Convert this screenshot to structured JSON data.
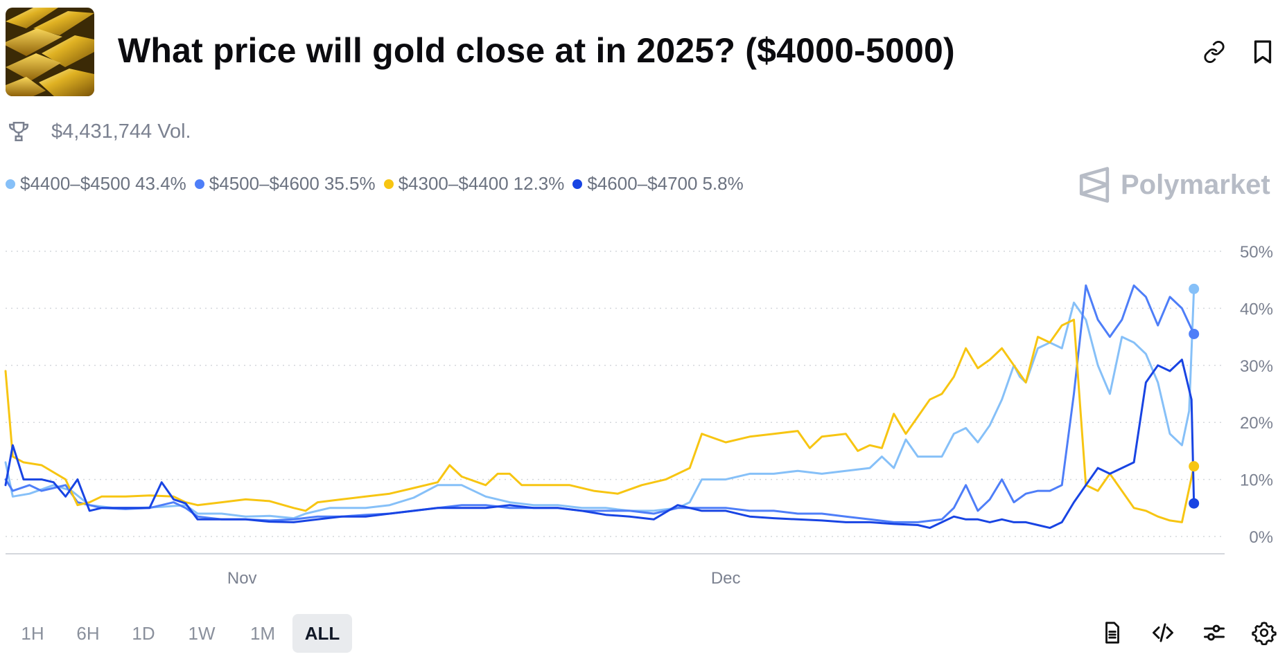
{
  "header": {
    "title": "What price will gold close at in 2025? ($4000-5000)",
    "image_alt": "gold bars"
  },
  "volume": {
    "label": "$4,431,744 Vol."
  },
  "brand": {
    "name": "Polymarket"
  },
  "timeframes": [
    "1H",
    "6H",
    "1D",
    "1W",
    "1M",
    "ALL"
  ],
  "active_timeframe": "ALL",
  "toolbar_icons": [
    "link-icon",
    "bookmark-icon",
    "document-icon",
    "code-icon",
    "sliders-icon",
    "settings-icon"
  ],
  "chart_data": {
    "type": "line",
    "x_ticks": [
      "Nov",
      "Dec"
    ],
    "y_ticks": [
      "0%",
      "10%",
      "20%",
      "30%",
      "40%",
      "50%"
    ],
    "ylim": [
      0,
      50
    ],
    "x_range": [
      0,
      100
    ],
    "x_tick_positions": [
      19.7,
      60.0
    ],
    "grid": "horizontal dotted",
    "legend_position": "top-left",
    "series": [
      {
        "name": "$4400–$4500",
        "label": "43.4%",
        "final": 43.4,
        "color": "#86c0f8",
        "points": [
          [
            0,
            13
          ],
          [
            0.6,
            7
          ],
          [
            2,
            7.5
          ],
          [
            4,
            9
          ],
          [
            5.5,
            8
          ],
          [
            7,
            5.5
          ],
          [
            9,
            5
          ],
          [
            11,
            5
          ],
          [
            13,
            5.2
          ],
          [
            15,
            5.5
          ],
          [
            16,
            4
          ],
          [
            18,
            4
          ],
          [
            20,
            3.5
          ],
          [
            22,
            3.6
          ],
          [
            24,
            3.2
          ],
          [
            25,
            4
          ],
          [
            27,
            5
          ],
          [
            30,
            5
          ],
          [
            32,
            5.5
          ],
          [
            34,
            6.8
          ],
          [
            36,
            9
          ],
          [
            38,
            9
          ],
          [
            40,
            7
          ],
          [
            42,
            6
          ],
          [
            44,
            5.5
          ],
          [
            46,
            5.5
          ],
          [
            48,
            5
          ],
          [
            50,
            5
          ],
          [
            52,
            4.5
          ],
          [
            54,
            4.5
          ],
          [
            56,
            5
          ],
          [
            57,
            6
          ],
          [
            58,
            10
          ],
          [
            60,
            10
          ],
          [
            62,
            11
          ],
          [
            64,
            11
          ],
          [
            66,
            11.5
          ],
          [
            68,
            11
          ],
          [
            70,
            11.5
          ],
          [
            72,
            12
          ],
          [
            73,
            14
          ],
          [
            74,
            12
          ],
          [
            75,
            17
          ],
          [
            76,
            14
          ],
          [
            78,
            14
          ],
          [
            79,
            18
          ],
          [
            80,
            19
          ],
          [
            81,
            16.5
          ],
          [
            82,
            19.5
          ],
          [
            83,
            24
          ],
          [
            84,
            30
          ],
          [
            84.5,
            28
          ],
          [
            85,
            27
          ],
          [
            86,
            33
          ],
          [
            87,
            34
          ],
          [
            88,
            33
          ],
          [
            89,
            41
          ],
          [
            90,
            38
          ],
          [
            91,
            30
          ],
          [
            92,
            25
          ],
          [
            93,
            35
          ],
          [
            94,
            34
          ],
          [
            95,
            32
          ],
          [
            96,
            27
          ],
          [
            97,
            18
          ],
          [
            98,
            16
          ],
          [
            98.6,
            22
          ],
          [
            99,
            43.4
          ]
        ]
      },
      {
        "name": "$4500–$4600",
        "label": "35.5%",
        "final": 35.5,
        "color": "#4e7ef8",
        "points": [
          [
            0,
            10
          ],
          [
            0.6,
            8
          ],
          [
            2,
            9
          ],
          [
            3,
            8
          ],
          [
            4,
            8.5
          ],
          [
            5,
            9
          ],
          [
            6,
            6
          ],
          [
            7,
            5.5
          ],
          [
            8,
            5
          ],
          [
            10,
            4.8
          ],
          [
            12,
            5
          ],
          [
            14,
            6
          ],
          [
            15,
            5
          ],
          [
            16,
            3.5
          ],
          [
            18,
            3
          ],
          [
            20,
            3
          ],
          [
            22,
            2.8
          ],
          [
            24,
            3
          ],
          [
            26,
            3.5
          ],
          [
            28,
            3.5
          ],
          [
            30,
            3.8
          ],
          [
            32,
            4
          ],
          [
            34,
            4.5
          ],
          [
            36,
            5
          ],
          [
            38,
            5.5
          ],
          [
            40,
            5.5
          ],
          [
            42,
            5
          ],
          [
            44,
            5
          ],
          [
            46,
            5
          ],
          [
            48,
            4.5
          ],
          [
            50,
            4.5
          ],
          [
            52,
            4.5
          ],
          [
            54,
            4
          ],
          [
            55,
            4.5
          ],
          [
            56,
            5
          ],
          [
            58,
            5
          ],
          [
            60,
            5
          ],
          [
            62,
            4.5
          ],
          [
            64,
            4.5
          ],
          [
            66,
            4
          ],
          [
            68,
            4
          ],
          [
            70,
            3.5
          ],
          [
            72,
            3
          ],
          [
            74,
            2.5
          ],
          [
            76,
            2.5
          ],
          [
            78,
            3
          ],
          [
            79,
            5
          ],
          [
            80,
            9
          ],
          [
            81,
            4.5
          ],
          [
            82,
            6.5
          ],
          [
            83,
            10
          ],
          [
            84,
            6
          ],
          [
            85,
            7.5
          ],
          [
            86,
            8
          ],
          [
            87,
            8
          ],
          [
            88,
            9
          ],
          [
            89,
            25
          ],
          [
            90,
            44
          ],
          [
            91,
            38
          ],
          [
            92,
            35
          ],
          [
            93,
            38
          ],
          [
            94,
            44
          ],
          [
            95,
            42
          ],
          [
            96,
            37
          ],
          [
            97,
            42
          ],
          [
            98,
            40
          ],
          [
            99,
            35.5
          ]
        ]
      },
      {
        "name": "$4300–$4400",
        "label": "12.3%",
        "final": 12.3,
        "color": "#f7c512",
        "points": [
          [
            0,
            29
          ],
          [
            0.6,
            14
          ],
          [
            1.5,
            13
          ],
          [
            3,
            12.5
          ],
          [
            5,
            10
          ],
          [
            6,
            5.5
          ],
          [
            7,
            6
          ],
          [
            8,
            7
          ],
          [
            10,
            7
          ],
          [
            12,
            7.2
          ],
          [
            14,
            7
          ],
          [
            15,
            6
          ],
          [
            16,
            5.5
          ],
          [
            18,
            6
          ],
          [
            20,
            6.5
          ],
          [
            22,
            6.2
          ],
          [
            24,
            5
          ],
          [
            25,
            4.5
          ],
          [
            26,
            6
          ],
          [
            28,
            6.5
          ],
          [
            30,
            7
          ],
          [
            32,
            7.5
          ],
          [
            34,
            8.5
          ],
          [
            36,
            9.5
          ],
          [
            37,
            12.5
          ],
          [
            38,
            10.5
          ],
          [
            40,
            9
          ],
          [
            41,
            11
          ],
          [
            42,
            11
          ],
          [
            43,
            9
          ],
          [
            45,
            9
          ],
          [
            47,
            9
          ],
          [
            49,
            8
          ],
          [
            51,
            7.5
          ],
          [
            53,
            9
          ],
          [
            55,
            10
          ],
          [
            57,
            12
          ],
          [
            58,
            18
          ],
          [
            60,
            16.5
          ],
          [
            62,
            17.5
          ],
          [
            64,
            18
          ],
          [
            66,
            18.5
          ],
          [
            67,
            15.5
          ],
          [
            68,
            17.5
          ],
          [
            70,
            18
          ],
          [
            71,
            15
          ],
          [
            72,
            16
          ],
          [
            73,
            15.5
          ],
          [
            74,
            21.5
          ],
          [
            75,
            18
          ],
          [
            76,
            21
          ],
          [
            77,
            24
          ],
          [
            78,
            25
          ],
          [
            79,
            28
          ],
          [
            80,
            33
          ],
          [
            81,
            29.5
          ],
          [
            82,
            31
          ],
          [
            83,
            33
          ],
          [
            84,
            30
          ],
          [
            85,
            27
          ],
          [
            86,
            35
          ],
          [
            87,
            34
          ],
          [
            88,
            37
          ],
          [
            89,
            38
          ],
          [
            90,
            9
          ],
          [
            91,
            8
          ],
          [
            92,
            11
          ],
          [
            93,
            8
          ],
          [
            94,
            5
          ],
          [
            95,
            4.5
          ],
          [
            96,
            3.5
          ],
          [
            97,
            2.8
          ],
          [
            98,
            2.5
          ],
          [
            99,
            12.3
          ]
        ]
      },
      {
        "name": "$4600–$4700",
        "label": "5.8%",
        "final": 5.8,
        "color": "#1844e3",
        "points": [
          [
            0,
            9
          ],
          [
            0.6,
            16
          ],
          [
            1.5,
            10
          ],
          [
            3,
            10
          ],
          [
            4,
            9.5
          ],
          [
            5,
            7
          ],
          [
            6,
            10
          ],
          [
            7,
            4.5
          ],
          [
            8,
            5
          ],
          [
            10,
            5
          ],
          [
            12,
            5
          ],
          [
            13,
            9.5
          ],
          [
            14,
            6.5
          ],
          [
            15,
            5.8
          ],
          [
            16,
            3
          ],
          [
            18,
            3
          ],
          [
            20,
            3
          ],
          [
            22,
            2.6
          ],
          [
            24,
            2.5
          ],
          [
            26,
            3
          ],
          [
            28,
            3.5
          ],
          [
            30,
            3.5
          ],
          [
            32,
            4
          ],
          [
            34,
            4.5
          ],
          [
            36,
            5
          ],
          [
            38,
            5
          ],
          [
            40,
            5
          ],
          [
            42,
            5.5
          ],
          [
            44,
            5
          ],
          [
            46,
            5
          ],
          [
            48,
            4.5
          ],
          [
            50,
            3.8
          ],
          [
            52,
            3.5
          ],
          [
            54,
            3
          ],
          [
            56,
            5.5
          ],
          [
            58,
            4.5
          ],
          [
            60,
            4.5
          ],
          [
            62,
            3.5
          ],
          [
            64,
            3.2
          ],
          [
            66,
            3
          ],
          [
            68,
            2.8
          ],
          [
            70,
            2.5
          ],
          [
            72,
            2.5
          ],
          [
            74,
            2.2
          ],
          [
            76,
            2
          ],
          [
            77,
            1.5
          ],
          [
            78,
            2.5
          ],
          [
            79,
            3.5
          ],
          [
            80,
            3
          ],
          [
            81,
            3
          ],
          [
            82,
            2.5
          ],
          [
            83,
            3
          ],
          [
            84,
            2.5
          ],
          [
            85,
            2.5
          ],
          [
            86,
            2
          ],
          [
            87,
            1.5
          ],
          [
            88,
            2.5
          ],
          [
            89,
            6
          ],
          [
            90,
            9
          ],
          [
            91,
            12
          ],
          [
            92,
            11
          ],
          [
            93,
            12
          ],
          [
            94,
            13
          ],
          [
            95,
            27
          ],
          [
            96,
            30
          ],
          [
            97,
            29
          ],
          [
            98,
            31
          ],
          [
            98.8,
            24
          ],
          [
            99,
            5.8
          ]
        ]
      }
    ]
  }
}
